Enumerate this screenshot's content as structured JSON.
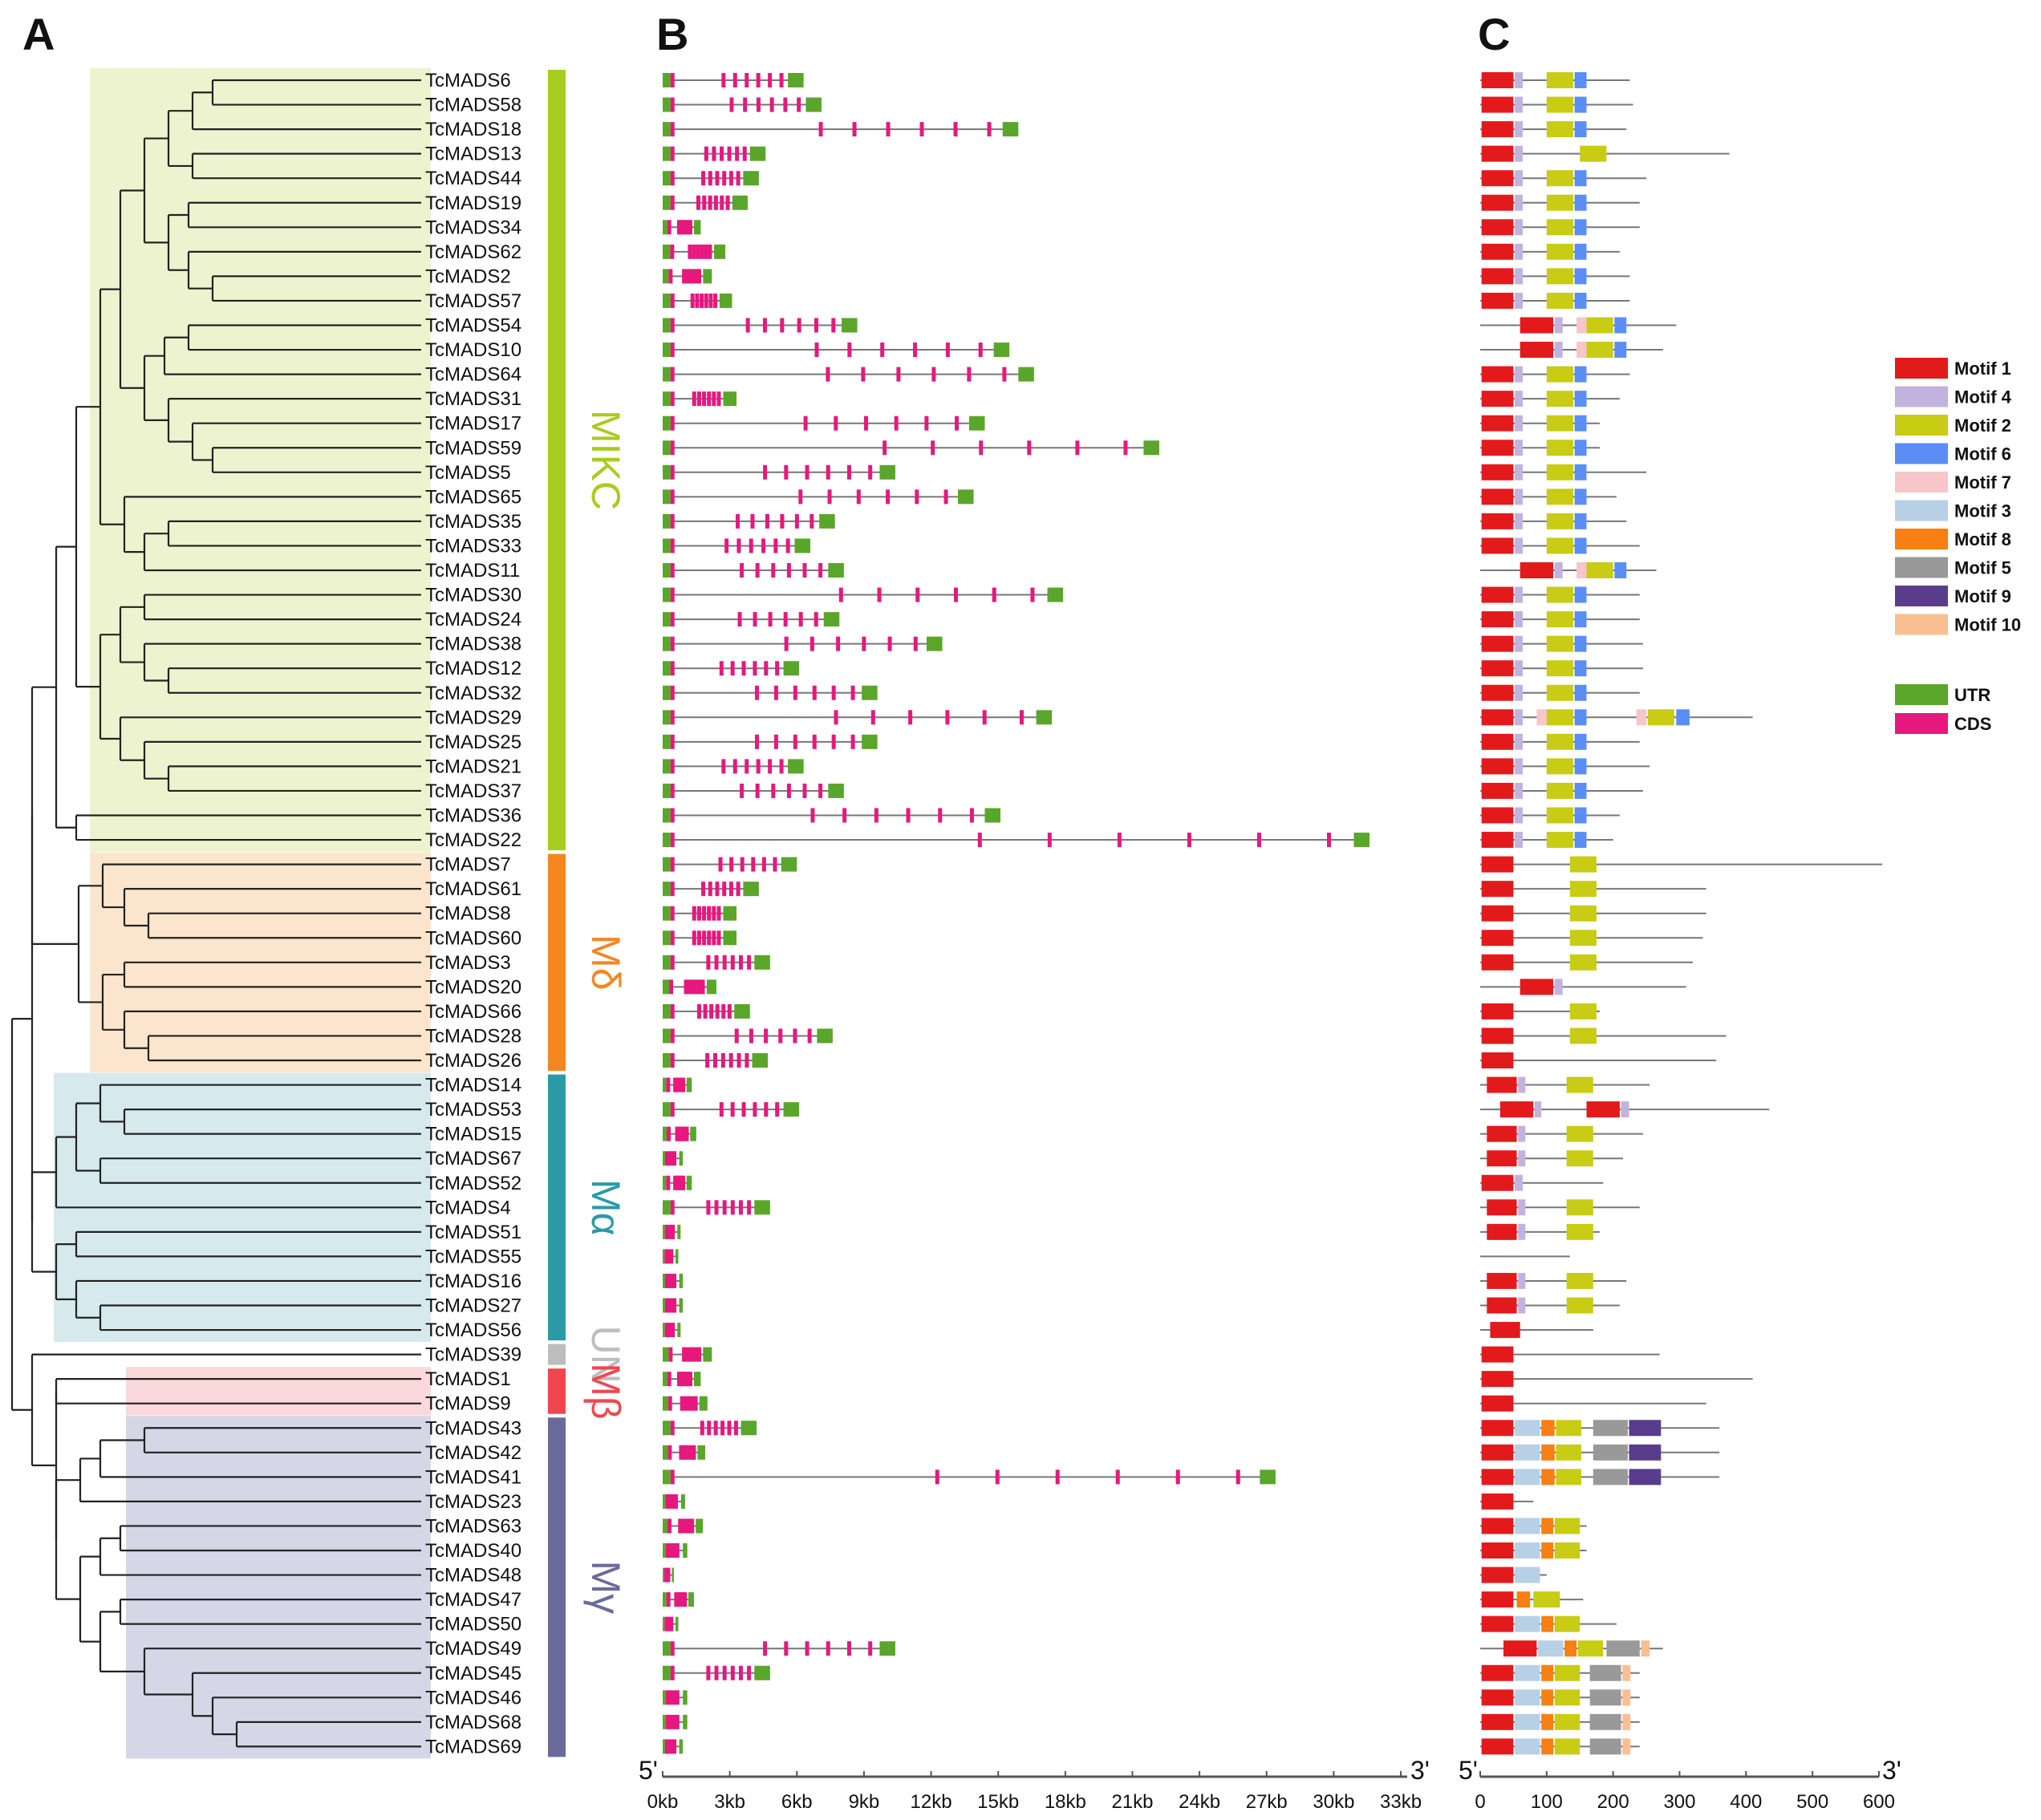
{
  "panels": {
    "a": "A",
    "b": "B",
    "c": "C"
  },
  "genes": [
    "TcMADS6",
    "TcMADS58",
    "TcMADS18",
    "TcMADS13",
    "TcMADS44",
    "TcMADS19",
    "TcMADS34",
    "TcMADS62",
    "TcMADS2",
    "TcMADS57",
    "TcMADS54",
    "TcMADS10",
    "TcMADS64",
    "TcMADS31",
    "TcMADS17",
    "TcMADS59",
    "TcMADS5",
    "TcMADS65",
    "TcMADS35",
    "TcMADS33",
    "TcMADS11",
    "TcMADS30",
    "TcMADS24",
    "TcMADS38",
    "TcMADS12",
    "TcMADS32",
    "TcMADS29",
    "TcMADS25",
    "TcMADS21",
    "TcMADS37",
    "TcMADS36",
    "TcMADS22",
    "TcMADS7",
    "TcMADS61",
    "TcMADS8",
    "TcMADS60",
    "TcMADS3",
    "TcMADS20",
    "TcMADS66",
    "TcMADS28",
    "TcMADS26",
    "TcMADS14",
    "TcMADS53",
    "TcMADS15",
    "TcMADS67",
    "TcMADS52",
    "TcMADS4",
    "TcMADS51",
    "TcMADS55",
    "TcMADS16",
    "TcMADS27",
    "TcMADS56",
    "TcMADS39",
    "TcMADS1",
    "TcMADS9",
    "TcMADS43",
    "TcMADS42",
    "TcMADS41",
    "TcMADS23",
    "TcMADS63",
    "TcMADS40",
    "TcMADS48",
    "TcMADS47",
    "TcMADS50",
    "TcMADS49",
    "TcMADS45",
    "TcMADS46",
    "TcMADS68",
    "TcMADS69"
  ],
  "groups": [
    {
      "label": "MIKC",
      "first": 0,
      "last": 31,
      "bg": "#eef3cf",
      "bar": "#a8cc1f",
      "color": "#a8cc1f"
    },
    {
      "label": "Mδ",
      "first": 32,
      "last": 40,
      "bg": "#fbe6cd",
      "bar": "#f5861f",
      "color": "#f5861f"
    },
    {
      "label": "Mα",
      "first": 41,
      "last": 51,
      "bg": "#d6e9ec",
      "bar": "#2b9aa7",
      "color": "#2b9aa7"
    },
    {
      "label": "UN",
      "first": 52,
      "last": 52,
      "bg": "none",
      "bar": "#bdbdbd",
      "color": "#bdbdbd"
    },
    {
      "label": "Mβ",
      "first": 53,
      "last": 54,
      "bg": "#fbd8da",
      "bar": "#f0474e",
      "color": "#f0474e"
    },
    {
      "label": "Mγ",
      "first": 55,
      "last": 68,
      "bg": "#d6d6e6",
      "bar": "#6b6b9b",
      "color": "#6b6b9b"
    }
  ],
  "panel_b": {
    "axis_ticks": [
      "0kb",
      "3kb",
      "6kb",
      "9kb",
      "12kb",
      "15kb",
      "18kb",
      "21kb",
      "24kb",
      "27kb",
      "30kb",
      "33kb"
    ],
    "five_prime": "5'",
    "three_prime": "3'",
    "gene_lengths_kb": [
      6.3,
      7.1,
      15.9,
      4.6,
      4.3,
      3.8,
      1.7,
      2.8,
      2.2,
      3.1,
      8.7,
      15.5,
      16.6,
      3.3,
      14.4,
      22.2,
      10.4,
      13.9,
      7.7,
      6.6,
      8.1,
      17.9,
      7.9,
      12.5,
      6.1,
      9.6,
      17.4,
      9.6,
      6.3,
      8.1,
      15.1,
      31.6,
      6.0,
      4.3,
      3.3,
      3.3,
      4.8,
      2.4,
      3.9,
      7.6,
      4.7,
      1.3,
      6.1,
      1.5,
      0.9,
      1.3,
      4.8,
      0.8,
      0.7,
      0.9,
      0.9,
      0.8,
      2.2,
      1.7,
      2.0,
      4.2,
      1.9,
      27.4,
      1.0,
      1.8,
      1.1,
      0.5,
      1.4,
      0.7,
      10.4,
      4.8,
      1.1,
      1.1,
      0.9
    ],
    "legend": [
      {
        "label": "UTR",
        "color": "#5aa62a"
      },
      {
        "label": "CDS",
        "color": "#e6187e"
      }
    ]
  },
  "panel_c": {
    "axis_ticks": [
      "0",
      "100",
      "200",
      "300",
      "400",
      "500",
      "600"
    ],
    "five_prime": "5'",
    "three_prime": "3'",
    "protein_lengths_aa": [
      225,
      230,
      220,
      375,
      250,
      240,
      240,
      210,
      225,
      225,
      295,
      275,
      225,
      210,
      180,
      180,
      250,
      205,
      220,
      240,
      265,
      240,
      240,
      245,
      245,
      240,
      410,
      240,
      255,
      245,
      210,
      200,
      605,
      340,
      340,
      335,
      320,
      310,
      180,
      370,
      355,
      255,
      435,
      245,
      215,
      185,
      240,
      180,
      135,
      220,
      210,
      170,
      270,
      410,
      340,
      360,
      360,
      360,
      80,
      160,
      160,
      100,
      155,
      205,
      275,
      240,
      240,
      240,
      240
    ],
    "motif_legend": [
      {
        "label": "Motif 1",
        "color": "#e31a1c"
      },
      {
        "label": "Motif 4",
        "color": "#c2b3de"
      },
      {
        "label": "Motif 2",
        "color": "#c8cc14"
      },
      {
        "label": "Motif 6",
        "color": "#5b8ef5"
      },
      {
        "label": "Motif 7",
        "color": "#f7c6c9"
      },
      {
        "label": "Motif 3",
        "color": "#b7d0e6"
      },
      {
        "label": "Motif 8",
        "color": "#f77f14"
      },
      {
        "label": "Motif 5",
        "color": "#999999"
      },
      {
        "label": "Motif 9",
        "color": "#5a3c8c"
      },
      {
        "label": "Motif 10",
        "color": "#f9bf92"
      }
    ]
  }
}
